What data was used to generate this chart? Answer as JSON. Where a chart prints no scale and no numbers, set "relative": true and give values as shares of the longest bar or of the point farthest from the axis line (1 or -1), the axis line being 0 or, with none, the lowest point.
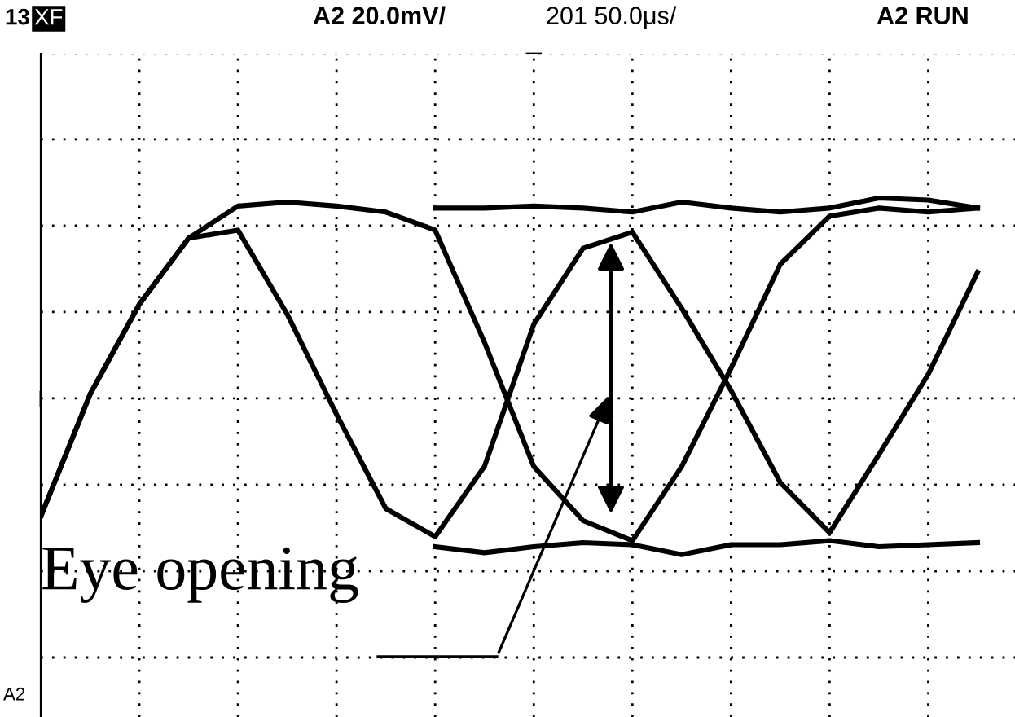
{
  "chart_data": {
    "type": "line",
    "relative": true,
    "grid": true,
    "marker": "none",
    "line_style": "solid",
    "categories": [
      null,
      null,
      null,
      null,
      null,
      null,
      null,
      null,
      null,
      null,
      null,
      null,
      null,
      null,
      null,
      null,
      null,
      null,
      null,
      null
    ],
    "series": [
      {
        "color": "#000000",
        "values": [
          -0.59,
          0.02,
          0.47,
          0.8,
          0.84,
          0.42,
          -0.08,
          -0.55,
          -0.69,
          -0.34,
          0.37,
          0.75,
          0.83,
          0.45,
          0.04,
          -0.42,
          -0.67,
          -0.28,
          0.12,
          0.63
        ]
      },
      {
        "color": "#000000",
        "values": [
          -0.59,
          0.02,
          0.47,
          0.8,
          0.96,
          0.98,
          0.96,
          0.93,
          0.84,
          0.28,
          -0.34,
          -0.61,
          -0.71,
          -0.34,
          0.15,
          0.67,
          0.91,
          0.95,
          0.93,
          0.95
        ]
      },
      {
        "color": "#000000",
        "values": [
          null,
          null,
          null,
          null,
          null,
          null,
          null,
          null,
          -0.74,
          -0.77,
          -0.74,
          -0.72,
          -0.73,
          -0.78,
          -0.73,
          -0.73,
          -0.71,
          -0.74,
          -0.73,
          -0.72
        ]
      },
      {
        "color": "#000000",
        "values": [
          null,
          null,
          null,
          null,
          null,
          null,
          null,
          null,
          0.95,
          0.95,
          0.96,
          0.95,
          0.93,
          0.98,
          0.95,
          0.93,
          0.95,
          1,
          0.99,
          0.95
        ]
      }
    ],
    "annotations": [
      "13",
      "XF",
      "A2 20.0mV/",
      "201 50.0μs/",
      "A2 RUN",
      "A2",
      "Eye opening"
    ]
  }
}
